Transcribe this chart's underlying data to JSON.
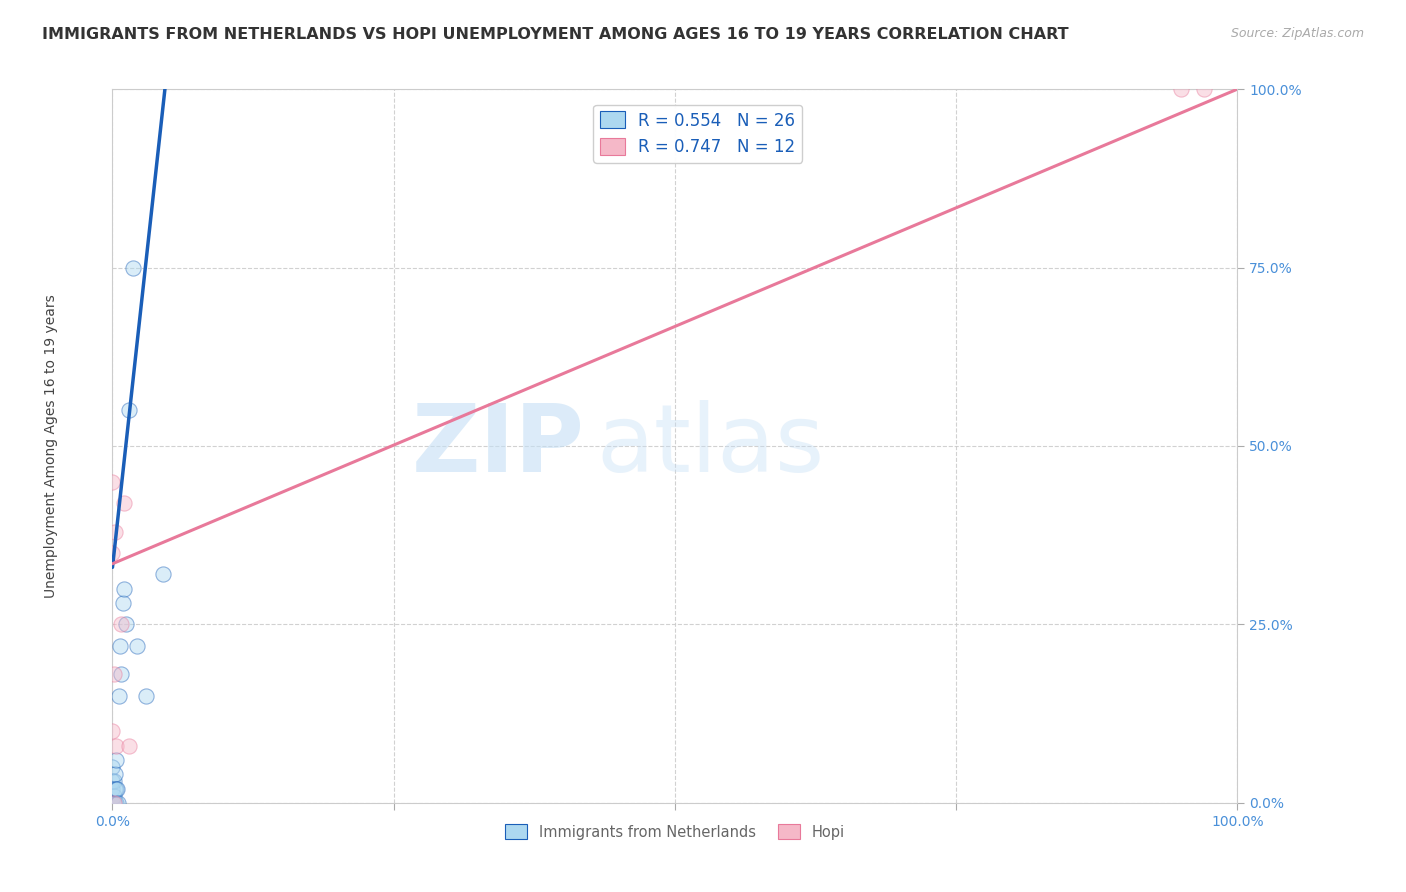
{
  "title": "IMMIGRANTS FROM NETHERLANDS VS HOPI UNEMPLOYMENT AMONG AGES 16 TO 19 YEARS CORRELATION CHART",
  "source": "Source: ZipAtlas.com",
  "ylabel": "Unemployment Among Ages 16 to 19 years",
  "xlim": [
    0,
    1
  ],
  "ylim": [
    0,
    1
  ],
  "netherlands_R": 0.554,
  "netherlands_N": 26,
  "hopi_R": 0.747,
  "hopi_N": 12,
  "netherlands_color": "#add8f0",
  "hopi_color": "#f5b8c8",
  "netherlands_line_color": "#1a5eb8",
  "hopi_line_color": "#e8799a",
  "background_color": "#ffffff",
  "watermark_zip": "ZIP",
  "watermark_atlas": "atlas",
  "title_fontsize": 11.5,
  "axis_label_fontsize": 10,
  "tick_fontsize": 10,
  "legend_fontsize": 12,
  "marker_size": 120,
  "marker_alpha": 0.45,
  "line_width": 2.2,
  "netherlands_x": [
    0.0,
    0.0,
    0.0,
    0.0,
    0.001,
    0.001,
    0.001,
    0.002,
    0.002,
    0.002,
    0.003,
    0.003,
    0.003,
    0.004,
    0.005,
    0.006,
    0.007,
    0.008,
    0.009,
    0.01,
    0.012,
    0.015,
    0.018,
    0.022,
    0.03,
    0.045
  ],
  "netherlands_y": [
    0.0,
    0.02,
    0.03,
    0.05,
    0.0,
    0.01,
    0.03,
    0.0,
    0.02,
    0.04,
    0.0,
    0.02,
    0.06,
    0.02,
    0.0,
    0.15,
    0.22,
    0.18,
    0.28,
    0.3,
    0.25,
    0.55,
    0.75,
    0.22,
    0.15,
    0.32
  ],
  "hopi_x": [
    0.0,
    0.0,
    0.0,
    0.001,
    0.001,
    0.002,
    0.003,
    0.008,
    0.01,
    0.015,
    0.95,
    0.97
  ],
  "hopi_y": [
    0.1,
    0.35,
    0.45,
    0.0,
    0.18,
    0.38,
    0.08,
    0.25,
    0.42,
    0.08,
    1.0,
    1.0
  ],
  "nl_line_x0": 0.0,
  "nl_line_y0": 0.33,
  "nl_line_x1": 0.048,
  "nl_line_y1": 1.02,
  "hopi_line_x0": 0.0,
  "hopi_line_y0": 0.335,
  "hopi_line_x1": 1.0,
  "hopi_line_y1": 1.0
}
